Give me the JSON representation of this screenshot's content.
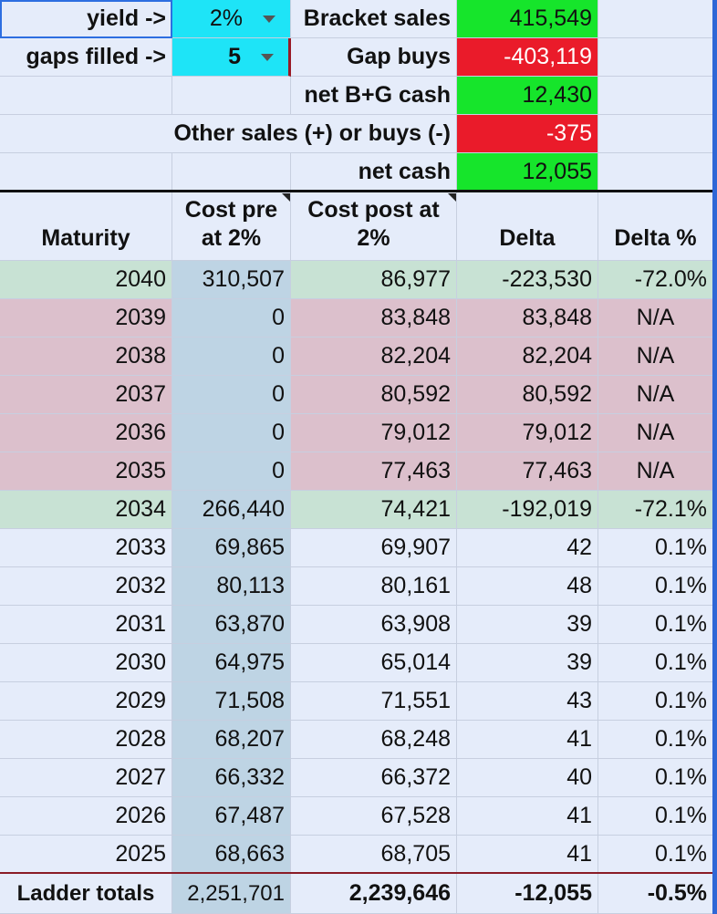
{
  "summary": {
    "yield_label": "yield  ->",
    "yield_value": "2%",
    "gaps_label": "gaps filled ->",
    "gaps_value": "5",
    "bracket_sales_label": "Bracket sales",
    "bracket_sales_value": "415,549",
    "gap_buys_label": "Gap buys",
    "gap_buys_value": "-403,119",
    "net_bg_label": "net B+G cash",
    "net_bg_value": "12,430",
    "other_label": "Other sales (+) or buys (-)",
    "other_value": "-375",
    "net_cash_label": "net cash",
    "net_cash_value": "12,055"
  },
  "table": {
    "headers": {
      "maturity": "Maturity",
      "cost_pre": "Cost pre at 2%",
      "cost_post": "Cost post at 2%",
      "delta": "Delta",
      "delta_pct": "Delta %"
    },
    "rows": [
      {
        "maturity": "2040",
        "pre": "310,507",
        "post": "86,977",
        "delta": "-223,530",
        "pct": "-72.0%"
      },
      {
        "maturity": "2039",
        "pre": "0",
        "post": "83,848",
        "delta": "83,848",
        "pct": "N/A"
      },
      {
        "maturity": "2038",
        "pre": "0",
        "post": "82,204",
        "delta": "82,204",
        "pct": "N/A"
      },
      {
        "maturity": "2037",
        "pre": "0",
        "post": "80,592",
        "delta": "80,592",
        "pct": "N/A"
      },
      {
        "maturity": "2036",
        "pre": "0",
        "post": "79,012",
        "delta": "79,012",
        "pct": "N/A"
      },
      {
        "maturity": "2035",
        "pre": "0",
        "post": "77,463",
        "delta": "77,463",
        "pct": "N/A"
      },
      {
        "maturity": "2034",
        "pre": "266,440",
        "post": "74,421",
        "delta": "-192,019",
        "pct": "-72.1%"
      },
      {
        "maturity": "2033",
        "pre": "69,865",
        "post": "69,907",
        "delta": "42",
        "pct": "0.1%"
      },
      {
        "maturity": "2032",
        "pre": "80,113",
        "post": "80,161",
        "delta": "48",
        "pct": "0.1%"
      },
      {
        "maturity": "2031",
        "pre": "63,870",
        "post": "63,908",
        "delta": "39",
        "pct": "0.1%"
      },
      {
        "maturity": "2030",
        "pre": "64,975",
        "post": "65,014",
        "delta": "39",
        "pct": "0.1%"
      },
      {
        "maturity": "2029",
        "pre": "71,508",
        "post": "71,551",
        "delta": "43",
        "pct": "0.1%"
      },
      {
        "maturity": "2028",
        "pre": "68,207",
        "post": "68,248",
        "delta": "41",
        "pct": "0.1%"
      },
      {
        "maturity": "2027",
        "pre": "66,332",
        "post": "66,372",
        "delta": "40",
        "pct": "0.1%"
      },
      {
        "maturity": "2026",
        "pre": "67,487",
        "post": "67,528",
        "delta": "41",
        "pct": "0.1%"
      },
      {
        "maturity": "2025",
        "pre": "68,663",
        "post": "68,705",
        "delta": "41",
        "pct": "0.1%"
      }
    ],
    "totals": {
      "label": "Ladder totals",
      "pre": "2,251,701",
      "post": "2,239,646",
      "delta": "-12,055",
      "pct": "-0.5%"
    }
  },
  "colors": {
    "sheet_bg": "#e5ecfa",
    "dropdown": "#1ee4f7",
    "positive": "#16e52b",
    "negative": "#ea1b2a",
    "bracket_row": "#c8e2d4",
    "gap_row": "#dcc0cc",
    "pre_column": "#bed4e4"
  },
  "icons": {
    "dropdown_arrow": "chevron-down-icon"
  }
}
